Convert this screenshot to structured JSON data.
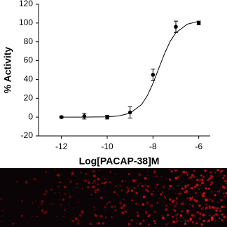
{
  "chart_data": {
    "type": "scatter",
    "xlabel": "Log[PACAP-38]M",
    "ylabel": "% Activity",
    "xlim": [
      -13,
      -5.5
    ],
    "xticks": [
      -12,
      -10,
      -8,
      -6
    ],
    "ylim": [
      -20,
      120
    ],
    "yticks": [
      -20,
      0,
      20,
      40,
      60,
      80,
      100,
      120
    ],
    "color": "#000000",
    "points": {
      "x": [
        -12,
        -11,
        -10,
        -9,
        -8,
        -7,
        -6
      ],
      "values": [
        0,
        1,
        0,
        5,
        45,
        96,
        100
      ],
      "errors": [
        1,
        3,
        2,
        6,
        6,
        6,
        2
      ]
    },
    "curve": {
      "x": [
        -12,
        -11,
        -10,
        -9.5,
        -9,
        -8.5,
        -8.25,
        -8,
        -7.75,
        -7.5,
        -7.25,
        -7,
        -6.5,
        -6
      ],
      "values": [
        0,
        0,
        0.3,
        1.2,
        4.2,
        13.3,
        22.6,
        35.8,
        51.5,
        67.2,
        80.4,
        89.7,
        98.8,
        101.8
      ]
    }
  }
}
